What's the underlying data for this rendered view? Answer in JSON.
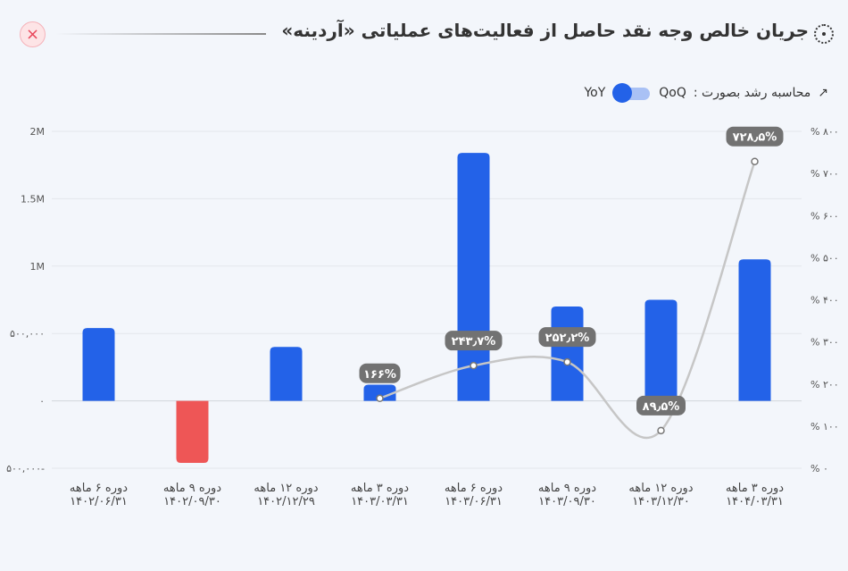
{
  "header": {
    "title": "جریان خالص وجه نقد حاصل از فعالیت‌های عملیاتی «آردینه»",
    "close_icon": "close-icon",
    "title_icon": "dotted-circle-icon"
  },
  "controls": {
    "label": "محاسبه رشد بصورت :",
    "qoq_label": "QoQ",
    "yoy_label": "YoY",
    "selected": "YoY",
    "trend_icon": "trend-up-icon"
  },
  "colors": {
    "positive_bar": "#2362e8",
    "negative_bar": "#ee5656",
    "growth_line": "#c6c6c6",
    "label_bg": "#727272"
  },
  "chart_data": {
    "type": "bar",
    "categories": [
      [
        "دوره ۶ ماهه",
        "۱۴۰۲/۰۶/۳۱"
      ],
      [
        "دوره ۹ ماهه",
        "۱۴۰۲/۰۹/۳۰"
      ],
      [
        "دوره ۱۲ ماهه",
        "۱۴۰۲/۱۲/۲۹"
      ],
      [
        "دوره ۳ ماهه",
        "۱۴۰۳/۰۳/۳۱"
      ],
      [
        "دوره ۶ ماهه",
        "۱۴۰۳/۰۶/۳۱"
      ],
      [
        "دوره ۹ ماهه",
        "۱۴۰۳/۰۹/۳۰"
      ],
      [
        "دوره ۱۲ ماهه",
        "۱۴۰۳/۱۲/۳۰"
      ],
      [
        "دوره ۳ ماهه",
        "۱۴۰۴/۰۳/۳۱"
      ]
    ],
    "values": [
      540000,
      -460000,
      400000,
      120000,
      1840000,
      700000,
      750000,
      1050000
    ],
    "left_axis": {
      "ylim": [
        -500000,
        2000000
      ],
      "ticks": [
        -500000,
        0,
        500000,
        1000000,
        1500000,
        2000000
      ],
      "tick_labels": [
        "۵۰۰,۰۰۰-",
        "۰",
        "۵۰۰,۰۰۰",
        "1M",
        "1.5M",
        "2M"
      ]
    },
    "right_axis": {
      "ylim": [
        0,
        800
      ],
      "ticks": [
        0,
        100,
        200,
        300,
        400,
        500,
        600,
        700,
        800
      ],
      "tick_labels": [
        "% ۰",
        "% ۱۰۰",
        "% ۲۰۰",
        "% ۳۰۰",
        "% ۴۰۰",
        "% ۵۰۰",
        "% ۶۰۰",
        "% ۷۰۰",
        "% ۸۰۰"
      ]
    },
    "growth": [
      {
        "index": 3,
        "value": 166,
        "label": "۱۶۶%"
      },
      {
        "index": 4,
        "value": 243.7,
        "label": "۲۴۳٫۷%"
      },
      {
        "index": 5,
        "value": 252.2,
        "label": "۲۵۲٫۲%"
      },
      {
        "index": 6,
        "value": 89.5,
        "label": "۸۹٫۵%"
      },
      {
        "index": 7,
        "value": 728.5,
        "label": "۷۲۸٫۵%"
      }
    ],
    "grid": true
  }
}
